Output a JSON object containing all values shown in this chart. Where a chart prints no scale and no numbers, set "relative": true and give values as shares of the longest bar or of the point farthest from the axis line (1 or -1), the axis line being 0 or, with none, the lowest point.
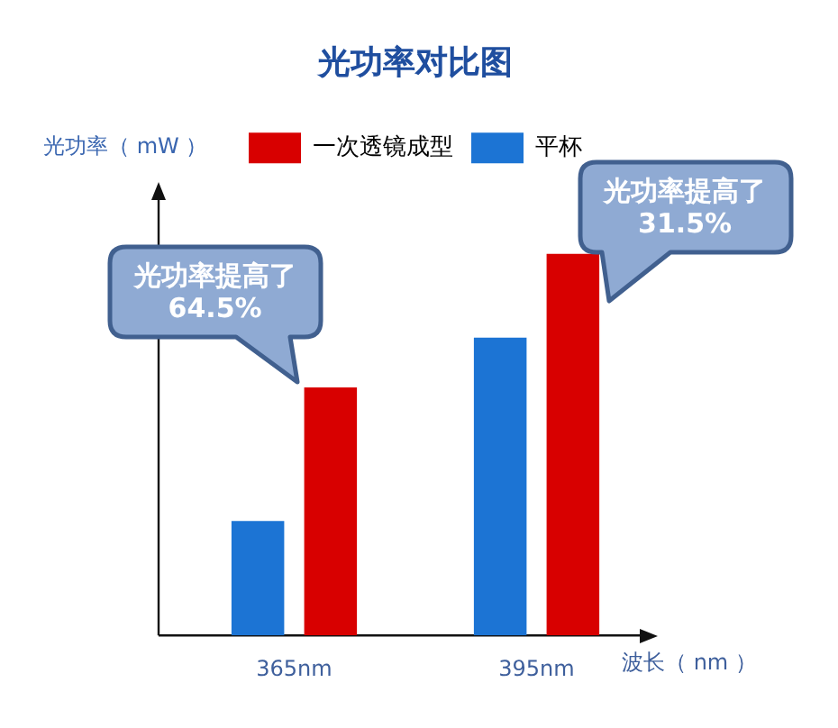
{
  "chart_data": {
    "type": "bar",
    "title": "光功率对比图",
    "xlabel": "波长（ nm ）",
    "ylabel": "光功率（ mW ）",
    "categories": [
      "365nm",
      "395nm"
    ],
    "series": [
      {
        "name": "平杯",
        "color": "#1c74d4",
        "values": [
          0.3,
          0.78
        ]
      },
      {
        "name": "一次透镜成型",
        "color": "#d80000",
        "values": [
          0.65,
          1
        ]
      }
    ],
    "relative": true,
    "legend": "top",
    "annotations": [
      "光功率提高了\n64.5%",
      "光功率提高了\n31.5%"
    ]
  }
}
